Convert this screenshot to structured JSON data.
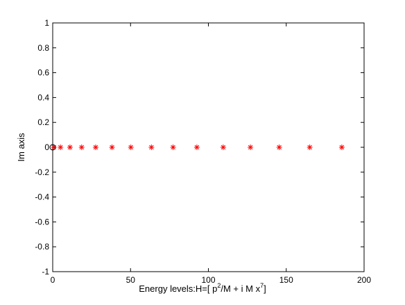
{
  "chart_data": {
    "type": "scatter",
    "title": "",
    "xlabel": {
      "prefix": "Energy levels:H=[ p",
      "exp1": "2",
      "middle": "/M + i M x",
      "exp2": "7",
      "suffix": "]"
    },
    "ylabel": "Im axis",
    "xlim": [
      0,
      200
    ],
    "ylim": [
      -1,
      1
    ],
    "xticks": [
      "0",
      "50",
      "100",
      "150",
      "200"
    ],
    "yticks": [
      "1",
      "0.8",
      "0.6",
      "0.4",
      "0.2",
      "0",
      "-0.2",
      "-0.4",
      "-0.6",
      "-0.8",
      "-1"
    ],
    "grid": false,
    "series": [
      {
        "marker": "asterisk",
        "color": "#ff0000",
        "x": [
          0.7,
          5.0,
          11.1,
          18.6,
          27.6,
          38.1,
          50.2,
          63.4,
          77.3,
          92.6,
          109.5,
          127.0,
          145.5,
          165.1,
          185.7
        ],
        "y": [
          0,
          0,
          0,
          0,
          0,
          0,
          0,
          0,
          0,
          0,
          0,
          0,
          0,
          0,
          0
        ]
      },
      {
        "marker": "circle",
        "color": "#000000",
        "x": [
          0
        ],
        "y": [
          0
        ]
      }
    ]
  }
}
